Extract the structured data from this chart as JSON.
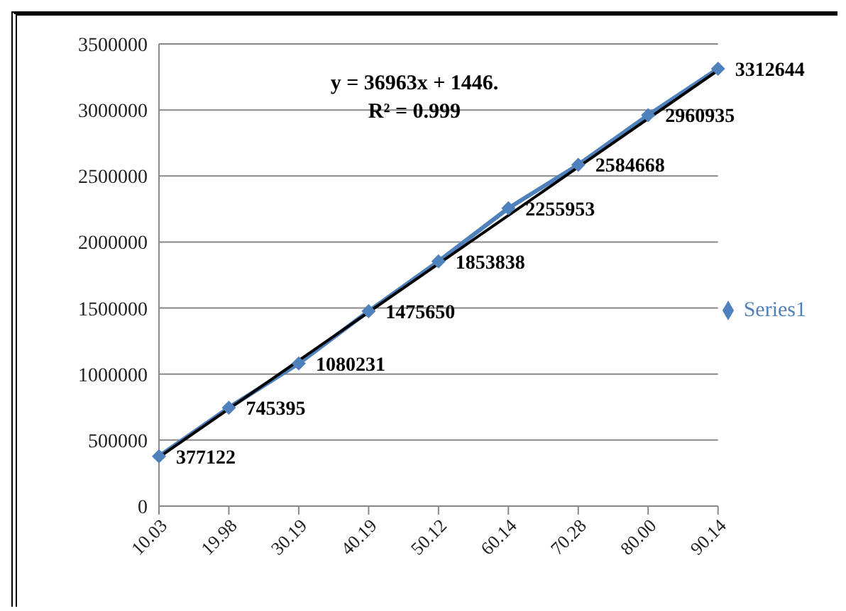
{
  "chart_data": {
    "type": "line",
    "categories": [
      "10.03",
      "19.98",
      "30.19",
      "40.19",
      "50.12",
      "60.14",
      "70.28",
      "80.00",
      "90.14"
    ],
    "series": [
      {
        "name": "Series1",
        "color": "#4f81bd",
        "values": [
          377122,
          745395,
          1080231,
          1475650,
          1853838,
          2255953,
          2584668,
          2960935,
          3312644
        ],
        "marker": "diamond",
        "data_labels": true
      },
      {
        "type": "line",
        "color": "#000000",
        "values": [
          370000,
          null,
          null,
          null,
          null,
          null,
          null,
          null,
          3300000
        ],
        "marker": "none"
      }
    ],
    "ylim": [
      0,
      3500000
    ],
    "yticks": [
      0,
      500000,
      1000000,
      1500000,
      2000000,
      2500000,
      3000000,
      3500000
    ],
    "grid": "y",
    "legend": "right",
    "annotations": [
      "y = 36963x + 1446.",
      "R² = 0.999"
    ]
  }
}
